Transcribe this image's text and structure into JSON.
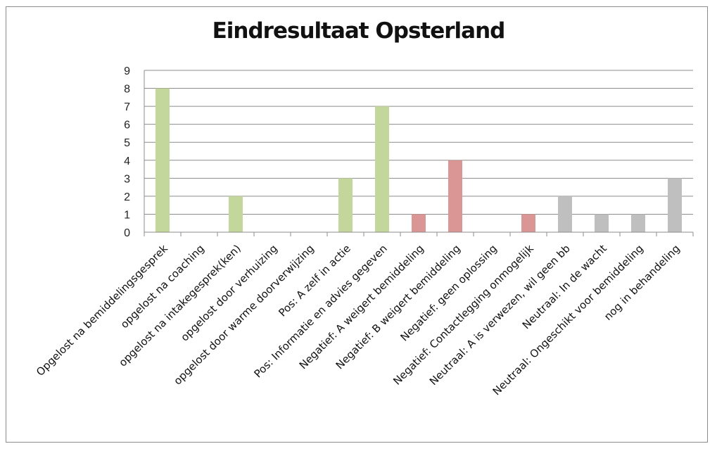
{
  "chart_data": {
    "type": "bar",
    "title": "Eindresultaat Opsterland",
    "xlabel": "",
    "ylabel": "",
    "ylim": [
      0,
      9
    ],
    "yticks": [
      0,
      1,
      2,
      3,
      4,
      5,
      6,
      7,
      8,
      9
    ],
    "grid": true,
    "legend": "none",
    "categories": [
      "Opgelost na bemiddelingsgesprek",
      "opgelost na coaching",
      "opgelost na intakegesprek(ken)",
      "opgelost door verhuizing",
      "opgelost door warme doorverwijzing",
      "Pos: A zelf in actie",
      "Pos: Informatie en advies gegeven",
      "Negatief: A weigert bemiddeling",
      "Negatief: B weigert bemiddeling",
      "Negatief: geen oplossing",
      "Negatief: Contactlegging onmogelijk",
      "Neutraal: A is verwezen, wil geen bb",
      "Neutraal: In de wacht",
      "Neutraal: Ongeschikt voor bemiddeling",
      "nog in behandeling"
    ],
    "values": [
      8,
      0,
      2,
      0,
      0,
      3,
      7,
      1,
      4,
      0,
      1,
      2,
      1,
      1,
      3
    ],
    "bar_colors": [
      "#c3d69b",
      "#c3d69b",
      "#c3d69b",
      "#c3d69b",
      "#c3d69b",
      "#c3d69b",
      "#c3d69b",
      "#d99694",
      "#d99694",
      "#d99694",
      "#d99694",
      "#bfbfbf",
      "#bfbfbf",
      "#bfbfbf",
      "#bfbfbf"
    ],
    "colors": {
      "positive": "#c3d69b",
      "negative": "#d99694",
      "neutral": "#bfbfbf",
      "gridline": "#8c8c8c"
    }
  }
}
